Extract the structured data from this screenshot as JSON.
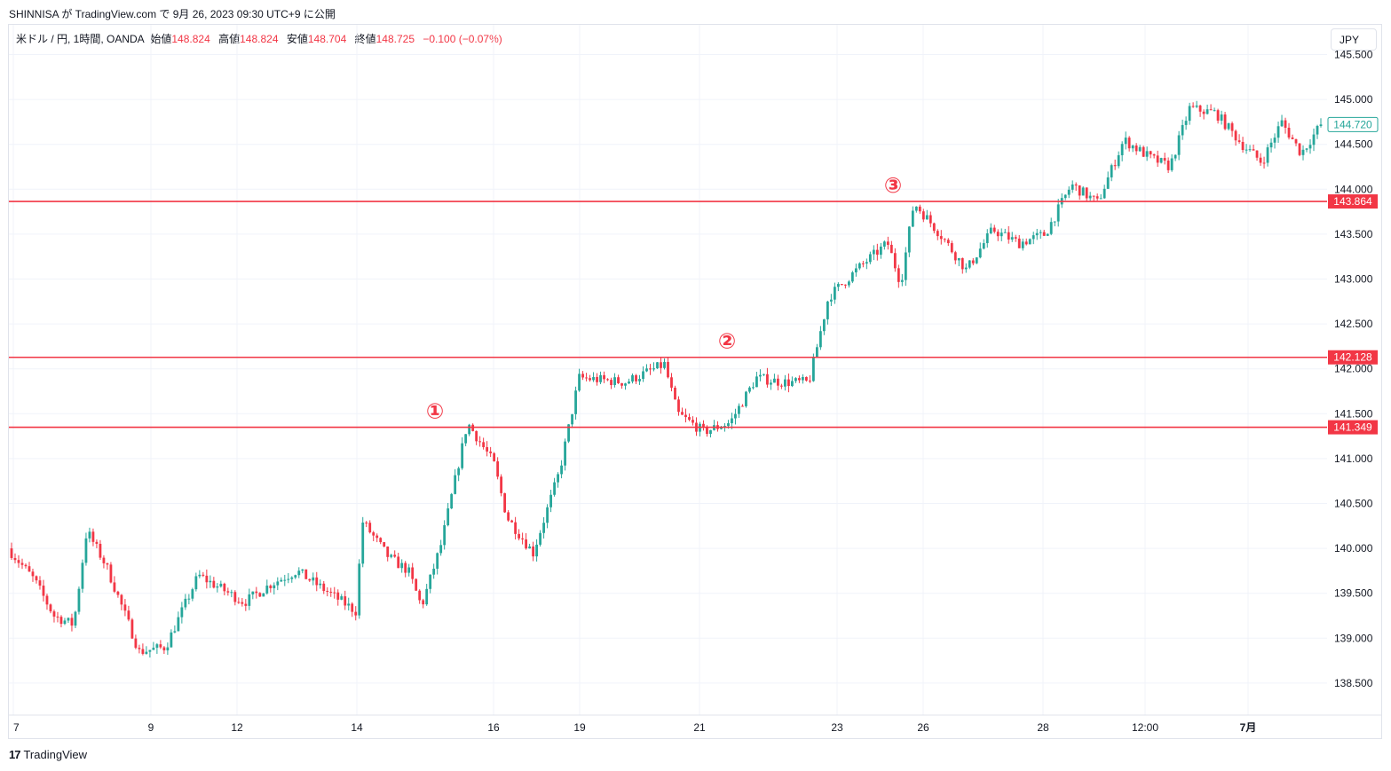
{
  "header": {
    "caption": "SHINNISA が TradingView.com で 9月 26, 2023 09:30 UTC+9 に公開"
  },
  "legend": {
    "symbol": "米ドル / 円, 1時間, OANDA",
    "open_label": "始値",
    "open": "148.824",
    "high_label": "高値",
    "high": "148.824",
    "low_label": "安値",
    "low": "148.704",
    "close_label": "終値",
    "close": "148.725",
    "change": "−0.100 (−0.07%)"
  },
  "currency_button": "JPY",
  "footer": {
    "brand": "TradingView"
  },
  "colors": {
    "up": "#26a69a",
    "down": "#f23645",
    "level": "#f23645",
    "grid": "#f0f3fa",
    "text": "#131722"
  },
  "chart_data": {
    "type": "candlestick",
    "instrument": "米ドル / 円, 1時間, OANDA",
    "ylim": [
      138.2,
      145.55
    ],
    "y_ticks": [
      "138.500",
      "139.000",
      "139.500",
      "140.000",
      "140.500",
      "141.000",
      "141.500",
      "142.000",
      "142.500",
      "143.000",
      "143.500",
      "144.000",
      "144.500",
      "145.000",
      "145.500"
    ],
    "x_ticks": [
      "7",
      "9",
      "12",
      "14",
      "16",
      "19",
      "21",
      "23",
      "26",
      "28",
      "12:00",
      "7月"
    ],
    "price_path": [
      [
        0,
        140.0
      ],
      [
        0.02,
        139.65
      ],
      [
        0.035,
        139.25
      ],
      [
        0.05,
        139.15
      ],
      [
        0.06,
        140.2
      ],
      [
        0.075,
        139.8
      ],
      [
        0.1,
        138.85
      ],
      [
        0.12,
        138.9
      ],
      [
        0.145,
        139.7
      ],
      [
        0.18,
        139.4
      ],
      [
        0.2,
        139.6
      ],
      [
        0.22,
        139.75
      ],
      [
        0.245,
        139.5
      ],
      [
        0.265,
        139.3
      ],
      [
        0.27,
        140.3
      ],
      [
        0.29,
        139.9
      ],
      [
        0.305,
        139.75
      ],
      [
        0.315,
        139.35
      ],
      [
        0.33,
        140.05
      ],
      [
        0.35,
        141.4
      ],
      [
        0.37,
        140.95
      ],
      [
        0.38,
        140.35
      ],
      [
        0.4,
        139.95
      ],
      [
        0.42,
        140.85
      ],
      [
        0.435,
        141.9
      ],
      [
        0.47,
        141.85
      ],
      [
        0.5,
        142.05
      ],
      [
        0.51,
        141.5
      ],
      [
        0.53,
        141.3
      ],
      [
        0.55,
        141.4
      ],
      [
        0.57,
        141.9
      ],
      [
        0.59,
        141.85
      ],
      [
        0.61,
        141.85
      ],
      [
        0.625,
        142.8
      ],
      [
        0.65,
        143.15
      ],
      [
        0.67,
        143.4
      ],
      [
        0.68,
        142.95
      ],
      [
        0.69,
        143.85
      ],
      [
        0.71,
        143.5
      ],
      [
        0.73,
        143.1
      ],
      [
        0.75,
        143.55
      ],
      [
        0.77,
        143.4
      ],
      [
        0.79,
        143.5
      ],
      [
        0.81,
        144.05
      ],
      [
        0.83,
        143.85
      ],
      [
        0.85,
        144.55
      ],
      [
        0.87,
        144.35
      ],
      [
        0.885,
        144.25
      ],
      [
        0.9,
        144.9
      ],
      [
        0.92,
        144.85
      ],
      [
        0.94,
        144.5
      ],
      [
        0.955,
        144.3
      ],
      [
        0.97,
        144.75
      ],
      [
        0.985,
        144.4
      ],
      [
        1.0,
        144.72
      ]
    ],
    "horizontal_levels": [
      {
        "value": 143.864,
        "label": "143.864",
        "marker": "③"
      },
      {
        "value": 142.128,
        "label": "142.128",
        "marker": "②"
      },
      {
        "value": 141.349,
        "label": "141.349",
        "marker": "①"
      }
    ],
    "last_price": {
      "value": 144.72,
      "label": "144.720"
    }
  }
}
